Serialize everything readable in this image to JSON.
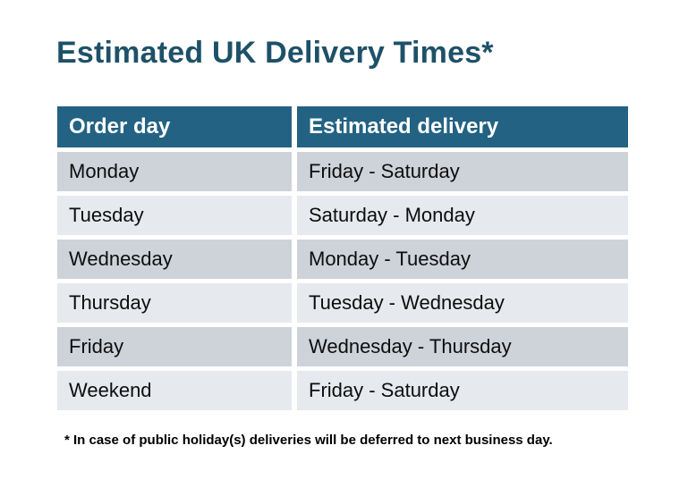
{
  "title": "Estimated UK Delivery Times*",
  "colors": {
    "title_text": "#1e5168",
    "header_background": "#236282",
    "header_text": "#ffffff",
    "row_shade_dark": "#ced2d9",
    "row_shade_light": "#e6e9ed",
    "body_text": "#0d0d0d",
    "page_background": "#ffffff"
  },
  "table": {
    "columns": [
      "Order day",
      "Estimated delivery"
    ],
    "rows": [
      {
        "order_day": "Monday",
        "estimated_delivery": "Friday - Saturday"
      },
      {
        "order_day": "Tuesday",
        "estimated_delivery": "Saturday - Monday"
      },
      {
        "order_day": "Wednesday",
        "estimated_delivery": "Monday - Tuesday"
      },
      {
        "order_day": "Thursday",
        "estimated_delivery": "Tuesday - Wednesday"
      },
      {
        "order_day": "Friday",
        "estimated_delivery": "Wednesday - Thursday"
      },
      {
        "order_day": "Weekend",
        "estimated_delivery": "Friday - Saturday"
      }
    ]
  },
  "footnote": "* In case of public holiday(s) deliveries will be deferred to next business day."
}
